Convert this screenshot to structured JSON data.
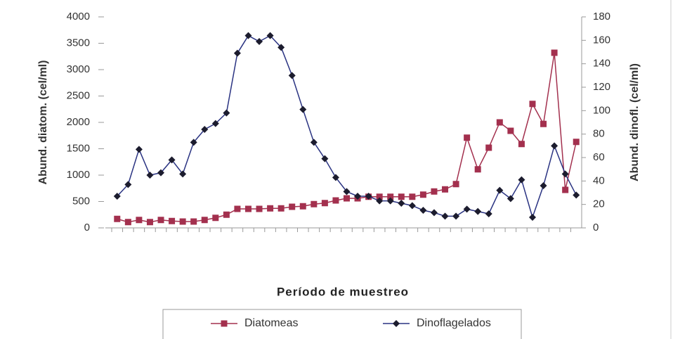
{
  "chart_data": {
    "type": "line",
    "x_label": "Período de muestreo",
    "y_label": "Abund. diatom. (cel/ml)",
    "y2_label": "Abund. dinofl. (cel/ml)",
    "categories": [
      null,
      null,
      null,
      null,
      null,
      null,
      null,
      null,
      null,
      null,
      null,
      null,
      null,
      null,
      null,
      null,
      null,
      null,
      null,
      null,
      null,
      null,
      null,
      null,
      null,
      null,
      null,
      null,
      null,
      null,
      null,
      null,
      null,
      null,
      null,
      null,
      null,
      null,
      null,
      null,
      null,
      null,
      null
    ],
    "series": [
      {
        "name": "Diatomeas",
        "color": "#a3304e",
        "marker": "square",
        "marker_color": "#a3304e",
        "values": [
          170,
          110,
          150,
          110,
          150,
          130,
          120,
          120,
          150,
          190,
          250,
          360,
          360,
          360,
          370,
          370,
          400,
          410,
          450,
          470,
          520,
          560,
          560,
          590,
          590,
          590,
          590,
          590,
          630,
          690,
          730,
          830,
          1710,
          1110,
          1520,
          2000,
          1840,
          1590,
          2350,
          1970,
          3320,
          720,
          1630
        ]
      },
      {
        "name": "Dinoflagelados",
        "color": "#2a3382",
        "marker": "diamond",
        "marker_color": "#1c1c2e",
        "axis": "y2",
        "values": [
          27,
          37,
          67,
          45,
          47,
          58,
          46,
          73,
          84,
          89,
          98,
          149,
          164,
          159,
          164,
          154,
          130,
          101,
          73,
          59,
          43,
          31,
          27,
          27,
          23,
          23,
          21,
          19,
          15,
          13,
          10,
          10,
          16,
          14,
          12,
          32,
          25,
          41,
          9,
          36,
          70,
          46,
          28
        ]
      }
    ],
    "ylim": [
      0,
      4000
    ],
    "yticks": [
      0,
      500,
      1000,
      1500,
      2000,
      2500,
      3000,
      3500,
      4000
    ],
    "y2lim": [
      0,
      180
    ],
    "y2ticks": [
      0,
      20,
      40,
      60,
      80,
      100,
      120,
      140,
      160,
      180
    ],
    "grid": false,
    "legend": "bottom"
  }
}
